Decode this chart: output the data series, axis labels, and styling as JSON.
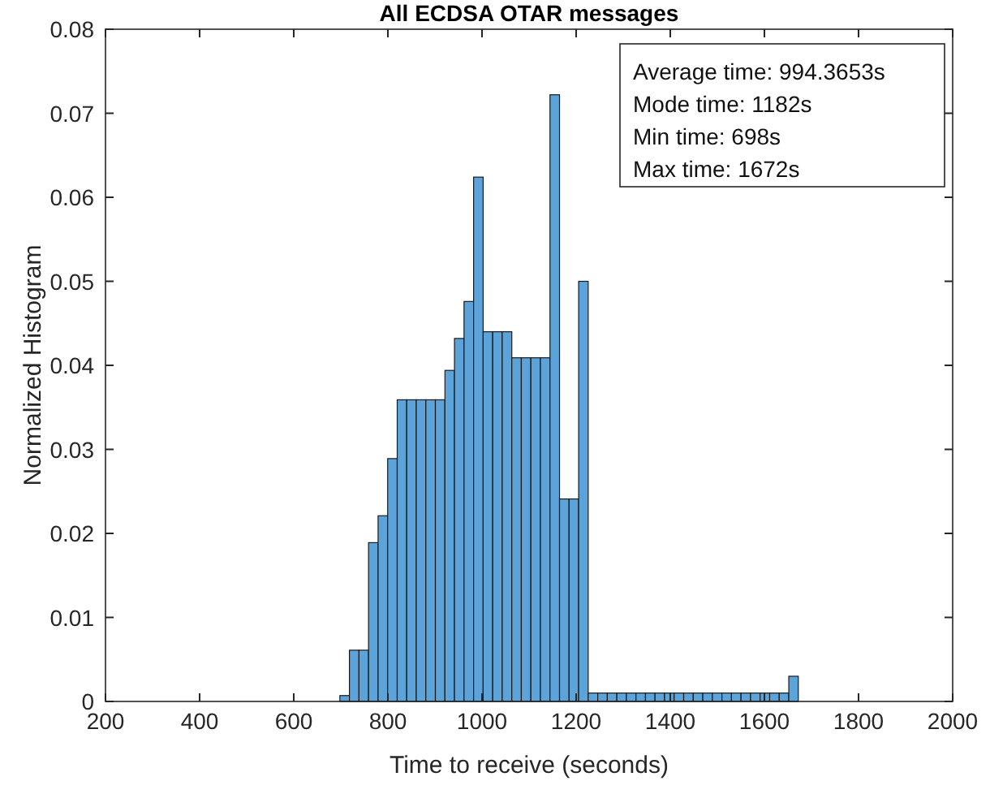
{
  "chart_data": {
    "type": "histogram",
    "title": "All ECDSA OTAR messages",
    "xlabel": "Time to receive (seconds)",
    "ylabel": "Normalized Histogram",
    "color": "#5ba3d9",
    "bins": [
      698,
      718.3,
      738.6,
      758.9,
      779.2,
      799.5,
      819.8,
      840.0,
      860.3,
      880.6,
      900.9,
      921.2,
      941.5,
      961.8,
      982.1,
      1002.4,
      1022.7,
      1042.9,
      1063.3,
      1083.5,
      1103.8,
      1124.1,
      1144.4,
      1164.7,
      1185.0,
      1205.3,
      1225.6,
      1245.9,
      1266.2,
      1286.5,
      1306.8,
      1327.1,
      1347.3,
      1367.6,
      1387.9,
      1408.2,
      1428.5,
      1448.8,
      1469.1,
      1489.4,
      1509.7,
      1530.0,
      1550.3,
      1570.6,
      1590.9,
      1611.2,
      1631.5,
      1651.8,
      1672
    ],
    "values": [
      0.0007,
      0.0061,
      0.0061,
      0.0189,
      0.0221,
      0.0289,
      0.0359,
      0.0359,
      0.0359,
      0.0359,
      0.0359,
      0.0394,
      0.0432,
      0.0476,
      0.0624,
      0.044,
      0.044,
      0.044,
      0.0409,
      0.0409,
      0.0409,
      0.0409,
      0.0722,
      0.0241,
      0.0241,
      0.05,
      0.001,
      0.001,
      0.001,
      0.001,
      0.001,
      0.001,
      0.001,
      0.001,
      0.001,
      0.001,
      0.001,
      0.001,
      0.001,
      0.001,
      0.001,
      0.001,
      0.001,
      0.001,
      0.001,
      0.001,
      0.001,
      0.003
    ],
    "xlim": [
      200,
      2000
    ],
    "xticks": [
      200,
      400,
      600,
      800,
      1000,
      1200,
      1400,
      1600,
      1800,
      2000
    ],
    "ylim": [
      0,
      0.08
    ],
    "yticks": [
      0,
      0.01,
      0.02,
      0.03,
      0.04,
      0.05,
      0.06,
      0.07,
      0.08
    ],
    "annotations": [
      "Average time: 994.3653s",
      "Mode time: 1182s",
      "Min time: 698s",
      "Max time: 1672s"
    ]
  }
}
